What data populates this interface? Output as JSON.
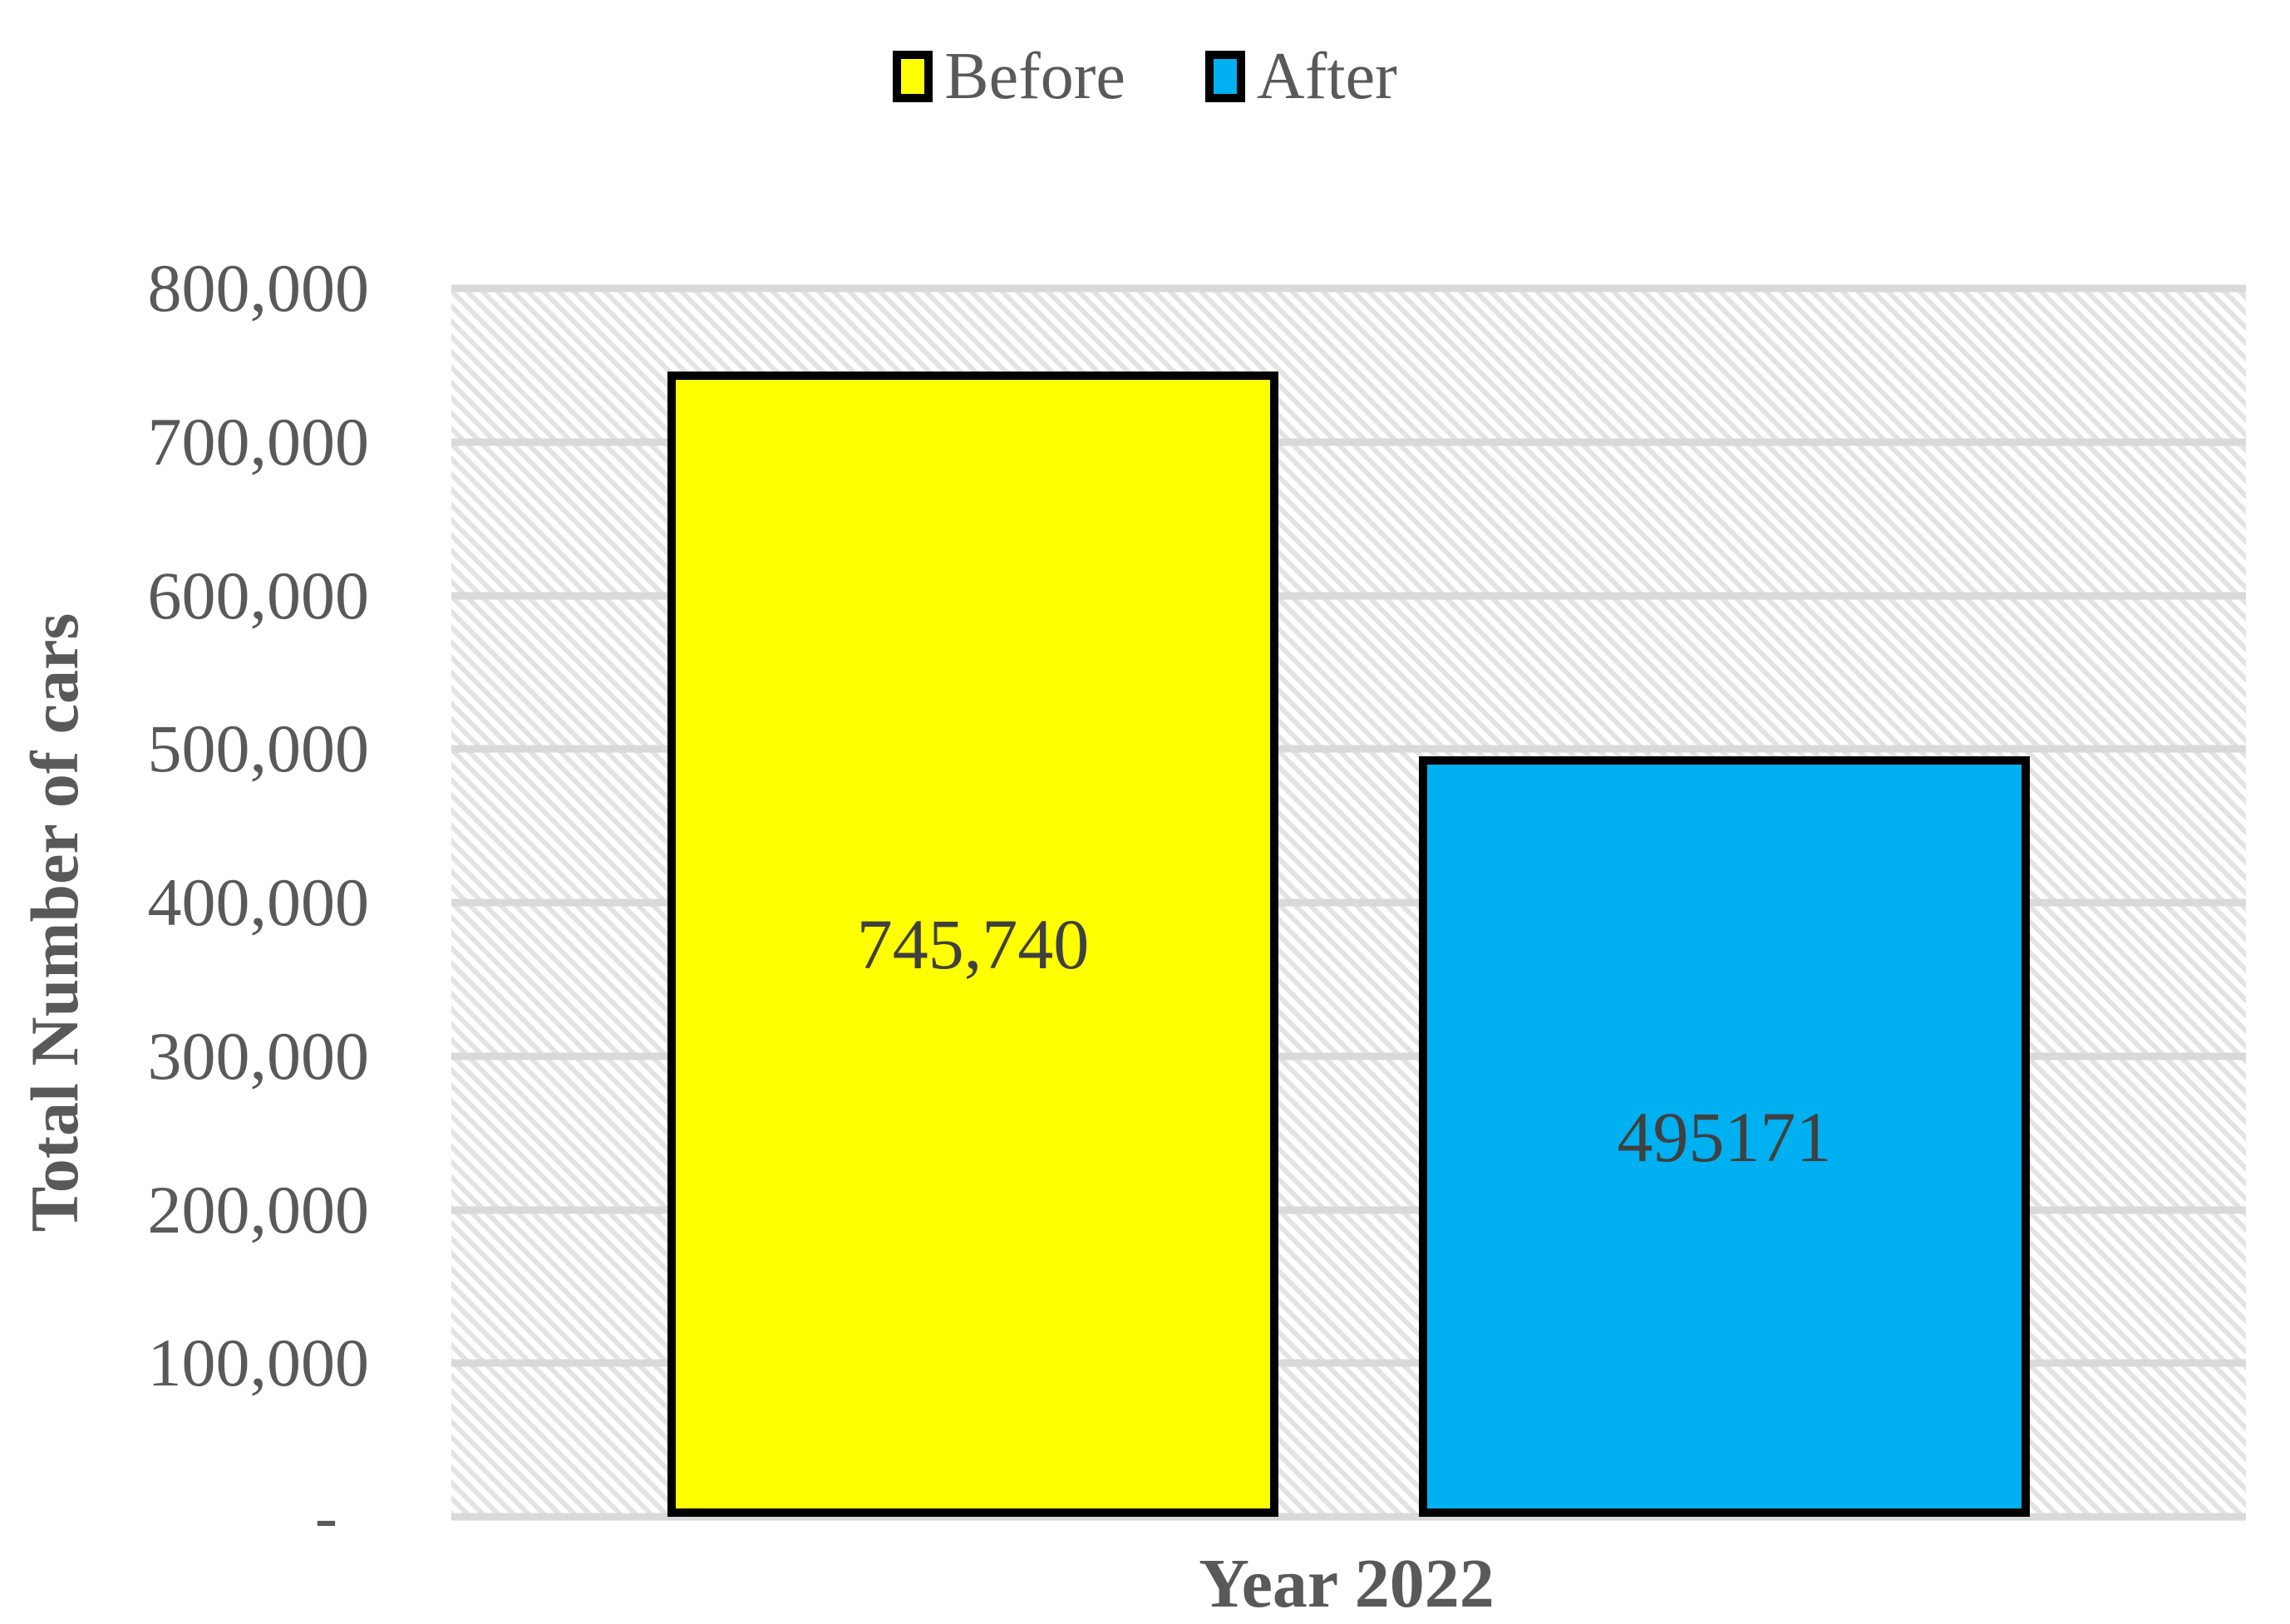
{
  "chart_data": {
    "type": "bar",
    "title": "",
    "categories": [
      "Year 2022"
    ],
    "series": [
      {
        "name": "Before",
        "values": [
          745740
        ],
        "data_labels": [
          "745,740"
        ],
        "color": "#FFFF00"
      },
      {
        "name": "After",
        "values": [
          495171
        ],
        "data_labels": [
          "495171"
        ],
        "color": "#00B0F0"
      }
    ],
    "xlabel": "Year 2022",
    "ylabel": "Total Number of cars",
    "ylim": [
      0,
      800000
    ],
    "ytick_step": 100000,
    "ytick_labels": [
      "800,000",
      "700,000",
      "600,000",
      "500,000",
      "400,000",
      "300,000",
      "200,000",
      "100,000",
      "-"
    ],
    "grid": "horizontal",
    "legend_position": "top-center",
    "plot_background": "light-downward-diagonal-hatch",
    "styles": {
      "bar_border_color": "#000000",
      "gridline_color": "#D9D9D9",
      "hatch_color": "#E3E3E3",
      "axis_text_color": "#595959",
      "data_label_color": "#404040"
    }
  }
}
